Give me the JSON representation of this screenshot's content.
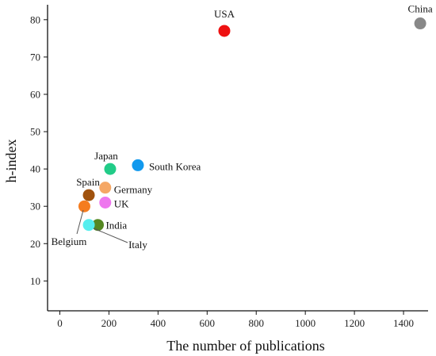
{
  "chart_data": {
    "type": "scatter",
    "title": "",
    "xlabel": "The number of publications",
    "ylabel": "h-index",
    "xlim": [
      -50,
      1500
    ],
    "ylim": [
      2,
      84
    ],
    "xticks": [
      0,
      200,
      400,
      600,
      800,
      1000,
      1200,
      1400
    ],
    "yticks": [
      10,
      20,
      30,
      40,
      50,
      60,
      70,
      80
    ],
    "grid": false,
    "legend": "none",
    "points": [
      {
        "label": "USA",
        "x": 670,
        "y": 77,
        "color": "#ee1111"
      },
      {
        "label": "China",
        "x": 1468,
        "y": 79,
        "color": "#888888"
      },
      {
        "label": "South Korea",
        "x": 318,
        "y": 41,
        "color": "#1199ee"
      },
      {
        "label": "Japan",
        "x": 205,
        "y": 40,
        "color": "#22cc88"
      },
      {
        "label": "Germany",
        "x": 185,
        "y": 35,
        "color": "#f5a765"
      },
      {
        "label": "Spain",
        "x": 118,
        "y": 33,
        "color": "#a0520d"
      },
      {
        "label": "UK",
        "x": 185,
        "y": 31,
        "color": "#ee77ee"
      },
      {
        "label": "Belgium",
        "x": 100,
        "y": 30,
        "color": "#f57c1f"
      },
      {
        "label": "India",
        "x": 155,
        "y": 25,
        "color": "#558822"
      },
      {
        "label": "Italy",
        "x": 118,
        "y": 25,
        "color": "#55eeee"
      }
    ]
  }
}
